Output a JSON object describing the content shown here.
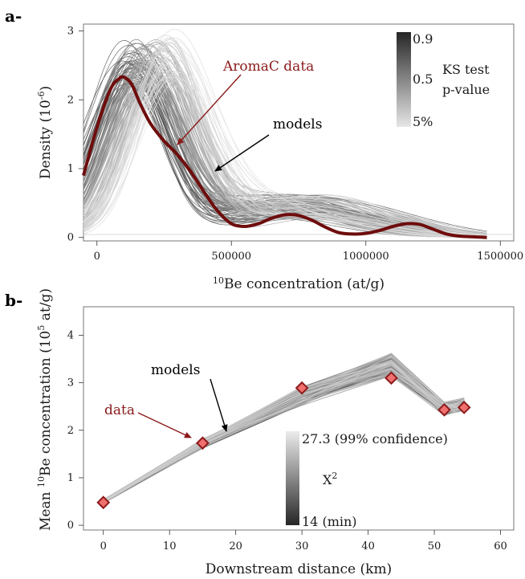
{
  "chart_data": [
    {
      "panel_label": "a-",
      "type": "line",
      "xlabel_sup": "10",
      "xlabel": "Be concentration (at/g)",
      "ylabel": "Density (10",
      "ylabel_sup": "-6",
      "ylabel_end": ")",
      "xlim": [
        -50000,
        1550000
      ],
      "ylim": [
        -0.05,
        3.1
      ],
      "x_ticks": [
        0,
        500000,
        1000000,
        1500000
      ],
      "x_tick_labels": [
        "0",
        "500000",
        "1000000",
        "1500000"
      ],
      "y_ticks": [
        0,
        1,
        2,
        3
      ],
      "y_tick_labels": [
        "0",
        "1",
        "2",
        "3"
      ],
      "data_series": {
        "name": "AromaC data",
        "color": "#6e0d0d",
        "x": [
          -50000,
          0,
          50000,
          80000,
          100000,
          130000,
          160000,
          200000,
          250000,
          300000,
          350000,
          400000,
          450000,
          500000,
          550000,
          600000,
          650000,
          700000,
          750000,
          800000,
          850000,
          900000,
          950000,
          1000000,
          1050000,
          1100000,
          1150000,
          1200000,
          1250000,
          1300000,
          1350000,
          1400000,
          1450000
        ],
        "y": [
          0.9,
          1.6,
          2.15,
          2.3,
          2.33,
          2.22,
          1.95,
          1.65,
          1.4,
          1.2,
          0.95,
          0.65,
          0.38,
          0.2,
          0.16,
          0.2,
          0.28,
          0.33,
          0.32,
          0.25,
          0.15,
          0.07,
          0.05,
          0.06,
          0.1,
          0.16,
          0.2,
          0.19,
          0.12,
          0.05,
          0.02,
          0.01,
          0.0
        ]
      },
      "models_label": "models",
      "legend": {
        "title_line1": "KS test",
        "title_line2": "p-value",
        "tick_labels": [
          "0.9",
          "0.5",
          "5%"
        ],
        "color_high": "#262626",
        "color_low": "#e6e6e6",
        "position": "top-right"
      }
    },
    {
      "panel_label": "b-",
      "type": "line",
      "xlabel": "Downstream distance (km)",
      "ylabel": "Mean ",
      "ylabel_sup": "10",
      "ylabel_mid": "Be concentration (10",
      "ylabel_sup2": "5",
      "ylabel_end": " at/g)",
      "xlim": [
        -3,
        62
      ],
      "ylim": [
        -0.1,
        4.6
      ],
      "x_ticks": [
        0,
        10,
        20,
        30,
        40,
        50,
        60
      ],
      "x_tick_labels": [
        "0",
        "10",
        "20",
        "30",
        "40",
        "50",
        "60"
      ],
      "y_ticks": [
        0,
        1,
        2,
        3,
        4
      ],
      "y_tick_labels": [
        "0",
        "1",
        "2",
        "3",
        "4"
      ],
      "data_series": {
        "name": "data",
        "color": "#8b1a1a",
        "marker_fill": "#f07070",
        "x": [
          0,
          15,
          30,
          43.5,
          51.5,
          54.5
        ],
        "y": [
          0.48,
          1.73,
          2.89,
          3.1,
          2.43,
          2.48
        ]
      },
      "model_x": [
        0,
        15,
        30,
        43.5,
        51.5,
        54.5
      ],
      "model_y": [
        0.5,
        1.72,
        2.72,
        3.38,
        2.45,
        2.55
      ],
      "models_label": "models",
      "legend": {
        "symbol": "X",
        "symbol_sup": "2",
        "label_top": "27.3 (99% confidence)",
        "label_bottom": "14 (min)",
        "color_top": "#ececec",
        "color_bottom": "#262626",
        "position": "bottom-right"
      }
    }
  ]
}
